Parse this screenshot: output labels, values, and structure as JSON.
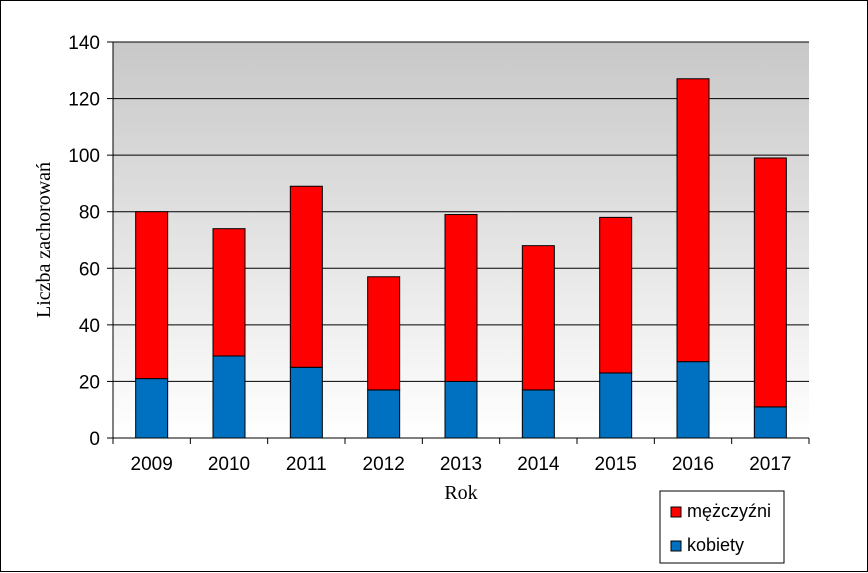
{
  "chart_data": {
    "type": "bar",
    "stacked": true,
    "categories": [
      "2009",
      "2010",
      "2011",
      "2012",
      "2013",
      "2014",
      "2015",
      "2016",
      "2017"
    ],
    "series": [
      {
        "name": "kobiety",
        "color": "#0070C0",
        "values": [
          21,
          29,
          25,
          17,
          20,
          17,
          23,
          27,
          11
        ]
      },
      {
        "name": "mężczyźni",
        "color": "#FF0000",
        "values": [
          59,
          45,
          64,
          40,
          59,
          51,
          55,
          100,
          88
        ]
      }
    ],
    "title": "",
    "xlabel": "Rok",
    "ylabel": "Liczba zachorowań",
    "ylim": [
      0,
      140
    ],
    "yticks": [
      "0",
      "20",
      "40",
      "60",
      "80",
      "100",
      "120",
      "140"
    ],
    "grid": true,
    "legend": {
      "position": "bottom-right",
      "entries": [
        "mężczyźni",
        "kobiety"
      ]
    }
  }
}
